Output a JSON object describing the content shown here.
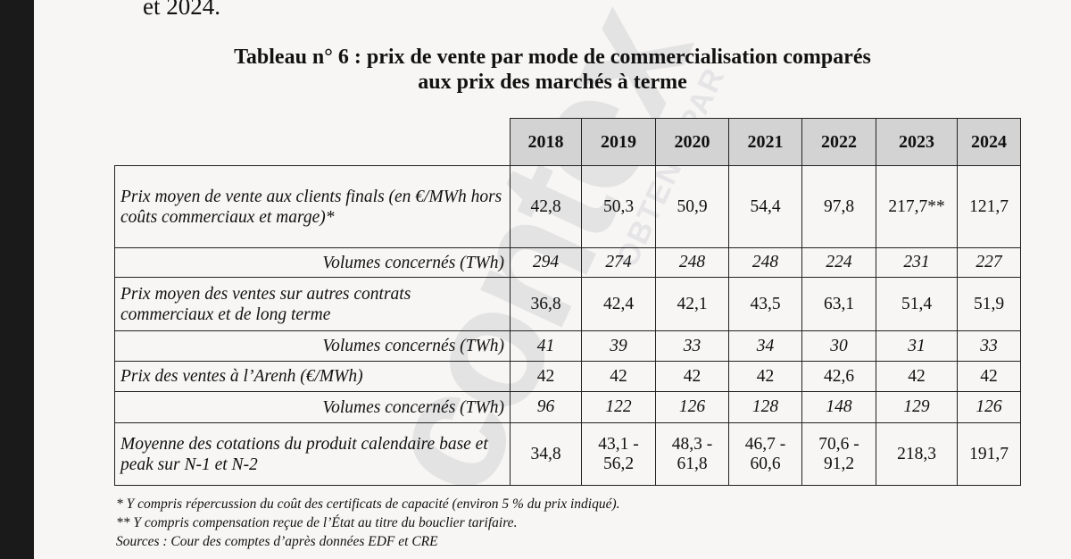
{
  "prev_text": "et 2024.",
  "title_line1": "Tableau n° 6 : prix de vente par mode de commercialisation comparés",
  "title_line2": "aux prix des marchés à terme",
  "watermark": {
    "big": "contex",
    "small": "OBTENU PAR"
  },
  "years": [
    "2018",
    "2019",
    "2020",
    "2021",
    "2022",
    "2023",
    "2024"
  ],
  "rows": [
    {
      "label": "Prix moyen de vente aux clients finals (en €/MWh hors coûts commerciaux et marge)*",
      "values": [
        "42,8",
        "50,3",
        "50,9",
        "54,4",
        "97,8",
        "217,7**",
        "121,7"
      ]
    },
    {
      "label": "Volumes concernés (TWh)",
      "values": [
        "294",
        "274",
        "248",
        "248",
        "224",
        "231",
        "227"
      ]
    },
    {
      "label": "Prix moyen des ventes sur autres contrats commerciaux et de long terme",
      "values": [
        "36,8",
        "42,4",
        "42,1",
        "43,5",
        "63,1",
        "51,4",
        "51,9"
      ]
    },
    {
      "label": "Volumes concernés (TWh)",
      "values": [
        "41",
        "39",
        "33",
        "34",
        "30",
        "31",
        "33"
      ]
    },
    {
      "label": "Prix des ventes à l’Arenh (€/MWh)",
      "values": [
        "42",
        "42",
        "42",
        "42",
        "42,6",
        "42",
        "42"
      ]
    },
    {
      "label": "Volumes concernés (TWh)",
      "values": [
        "96",
        "122",
        "126",
        "128",
        "148",
        "129",
        "126"
      ]
    },
    {
      "label": "Moyenne des cotations du produit calendaire base et peak sur N-1 et N-2",
      "values": [
        "34,8",
        "43,1 - 56,2",
        "48,3 - 61,8",
        "46,7 - 60,6",
        "70,6 - 91,2",
        "218,3",
        "191,7"
      ]
    }
  ],
  "notes": [
    "* Y compris répercussion du coût des certificats de capacité (environ 5 % du prix indiqué).",
    "** Y compris compensation reçue de l’État au titre du bouclier tarifaire.",
    "Sources : Cour des comptes d’après données EDF et CRE"
  ]
}
